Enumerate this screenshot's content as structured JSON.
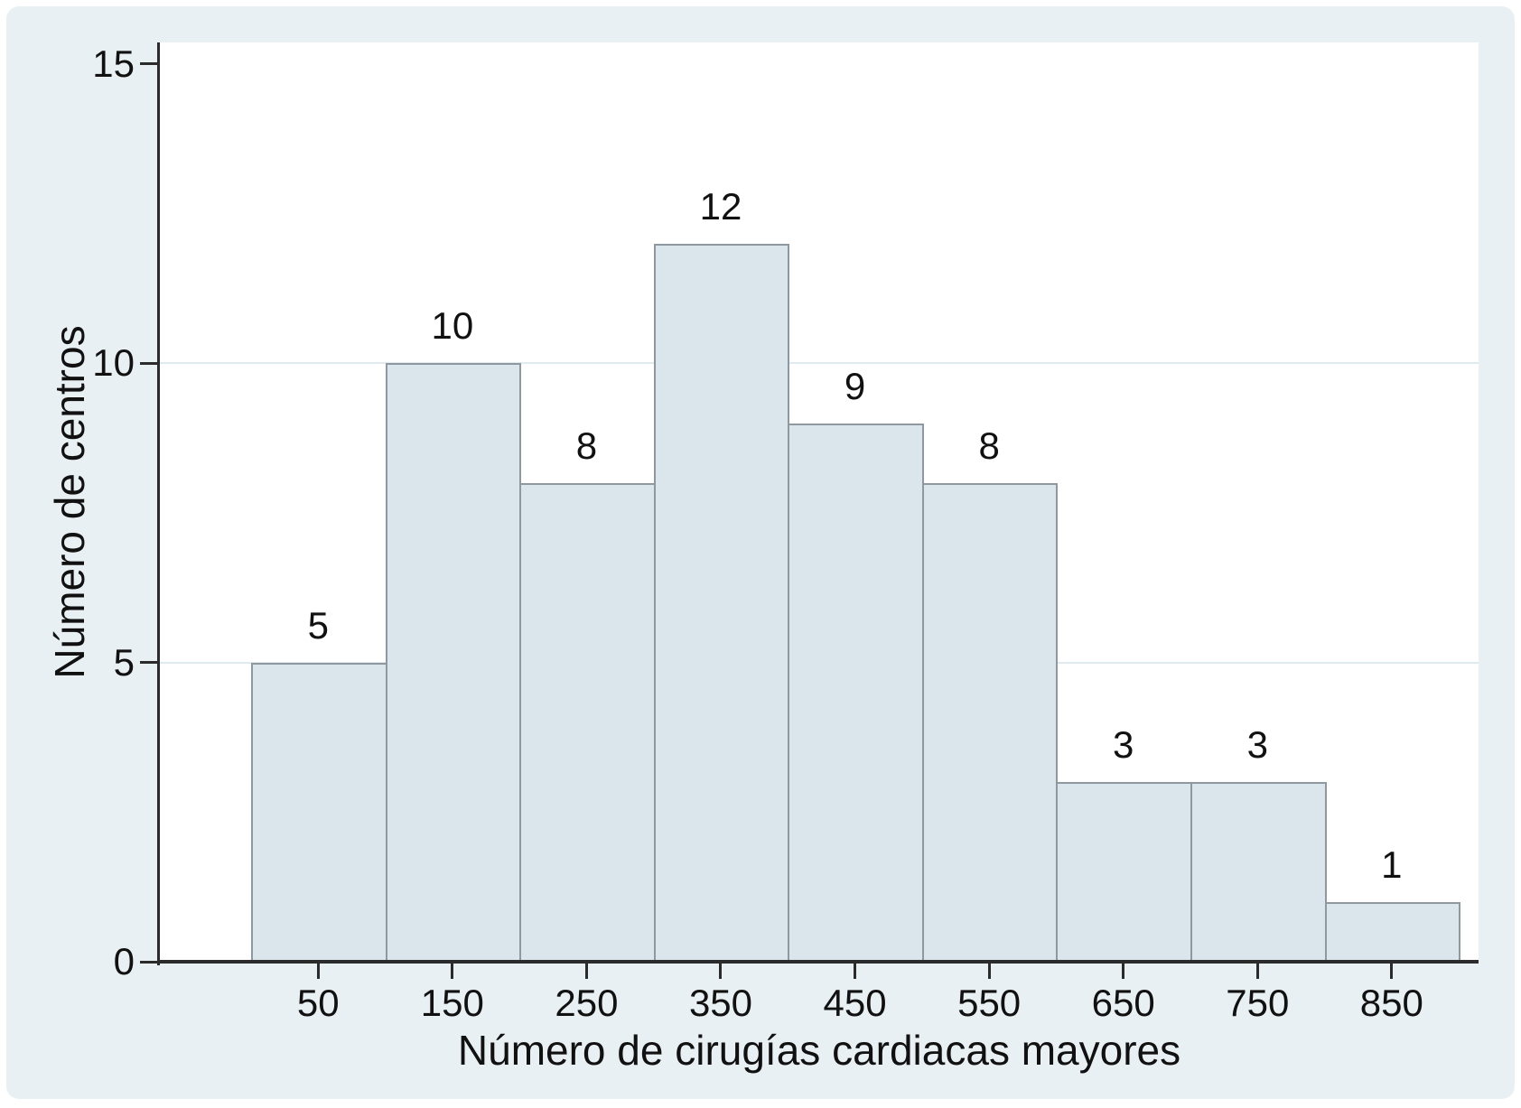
{
  "chart_data": {
    "type": "bar",
    "subtype": "histogram",
    "title": "",
    "xlabel": "Número de cirugías cardiacas mayores",
    "ylabel": "Número de centros",
    "categories": [
      "50",
      "150",
      "250",
      "350",
      "450",
      "550",
      "650",
      "750",
      "850"
    ],
    "values": [
      5,
      10,
      8,
      12,
      9,
      8,
      3,
      3,
      1
    ],
    "bar_value_labels": [
      "5",
      "10",
      "8",
      "12",
      "9",
      "8",
      "3",
      "3",
      "1"
    ],
    "bin_width": 100,
    "yticks": [
      "0",
      "5",
      "10",
      "15"
    ],
    "ytick_values": [
      0,
      5,
      10,
      15
    ],
    "ylim": [
      0,
      15.4
    ],
    "xlim": [
      -68,
      915
    ],
    "grid_y_values": [
      5,
      10
    ],
    "legend_position": "none",
    "colors": {
      "panel_bg": "#e9f0f4",
      "plot_bg": "#ffffff",
      "bar_fill": "#dbe6ec",
      "bar_border": "#8f989f",
      "gridline": "#dfeaf1",
      "axis": "#2b2b2b",
      "text": "#111111"
    }
  }
}
